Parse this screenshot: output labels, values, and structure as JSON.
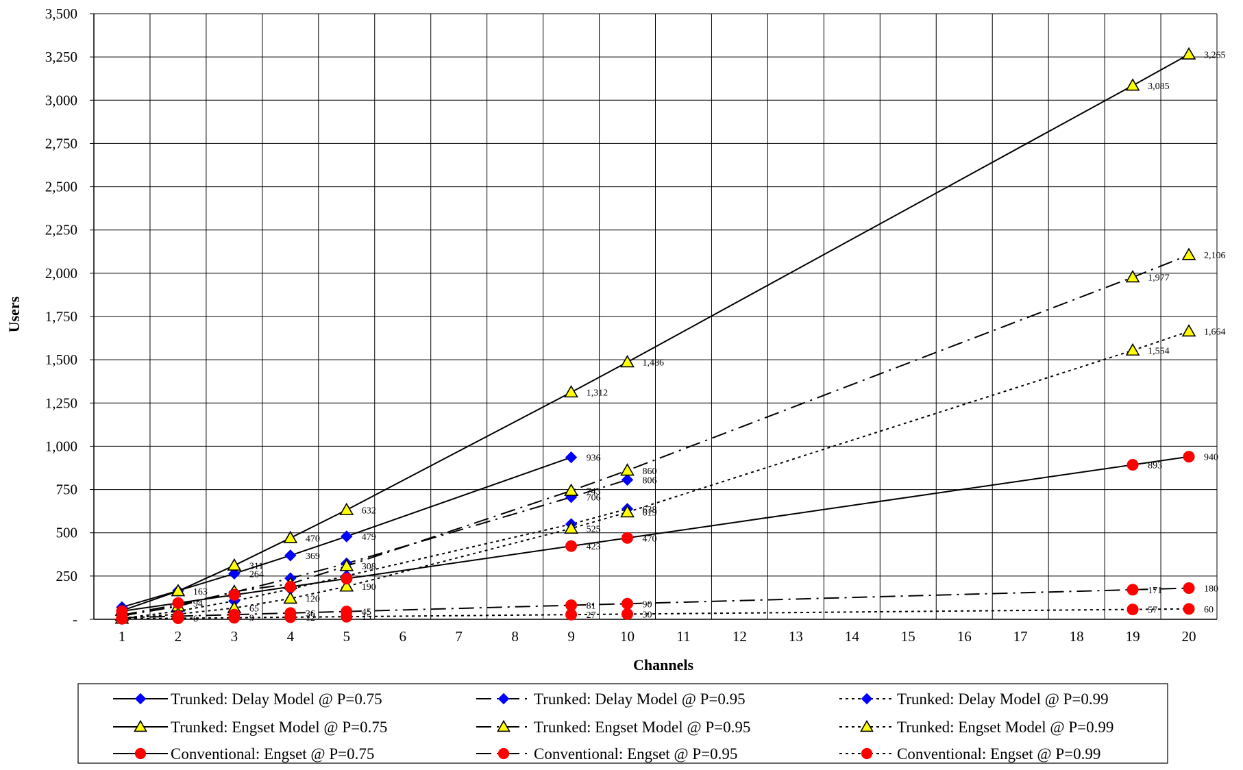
{
  "chart_data": {
    "type": "line",
    "title": "",
    "xlabel": "Channels",
    "ylabel": "Users",
    "x_categories": [
      "1",
      "2",
      "3",
      "4",
      "5",
      "6",
      "7",
      "8",
      "9",
      "10",
      "11",
      "12",
      "13",
      "14",
      "15",
      "16",
      "17",
      "18",
      "19",
      "20"
    ],
    "ylim": [
      0,
      3500
    ],
    "y_ticks": [
      {
        "value": 0,
        "label": "-"
      },
      {
        "value": 250,
        "label": "250"
      },
      {
        "value": 500,
        "label": "500"
      },
      {
        "value": 750,
        "label": "750"
      },
      {
        "value": 1000,
        "label": "1,000"
      },
      {
        "value": 1250,
        "label": "1,250"
      },
      {
        "value": 1500,
        "label": "1,500"
      },
      {
        "value": 1750,
        "label": "1,750"
      },
      {
        "value": 2000,
        "label": "2,000"
      },
      {
        "value": 2250,
        "label": "2,250"
      },
      {
        "value": 2500,
        "label": "2,500"
      },
      {
        "value": 2750,
        "label": "2,750"
      },
      {
        "value": 3000,
        "label": "3,000"
      },
      {
        "value": 3250,
        "label": "3,250"
      },
      {
        "value": 3500,
        "label": "3,500"
      }
    ],
    "grid": true,
    "legend_position": "bottom",
    "series": [
      {
        "name": "Trunked: Delay Model @ P=0.75",
        "marker": "diamond",
        "dash": "solid",
        "color": "#0000ff",
        "points": [
          [
            1,
            70
          ],
          [
            2,
            165
          ],
          [
            3,
            264
          ],
          [
            4,
            369
          ],
          [
            5,
            479
          ],
          [
            9,
            936
          ]
        ],
        "labels": [
          "",
          "",
          "264",
          "369",
          "479",
          "936"
        ]
      },
      {
        "name": "Trunked: Delay Model @ P=0.95",
        "marker": "diamond",
        "dash": "dashdot",
        "color": "#0000ff",
        "points": [
          [
            1,
            25
          ],
          [
            2,
            85
          ],
          [
            3,
            157
          ],
          [
            4,
            237
          ],
          [
            5,
            323
          ],
          [
            9,
            706
          ],
          [
            10,
            806
          ]
        ],
        "labels": [
          "",
          "",
          "",
          "",
          "",
          "706",
          "806"
        ]
      },
      {
        "name": "Trunked: Delay Model @ P=0.99",
        "marker": "diamond",
        "dash": "dotted",
        "color": "#0000ff",
        "points": [
          [
            1,
            5
          ],
          [
            2,
            47
          ],
          [
            3,
            106
          ],
          [
            4,
            175
          ],
          [
            5,
            251
          ],
          [
            9,
            550
          ],
          [
            10,
            638
          ]
        ],
        "labels": [
          "",
          "",
          "",
          "",
          "",
          "",
          "638"
        ]
      },
      {
        "name": "Trunked: Engset Model @ P=0.75",
        "marker": "triangle",
        "dash": "solid",
        "color": "#ffff00",
        "points": [
          [
            1,
            50
          ],
          [
            2,
            163
          ],
          [
            3,
            311
          ],
          [
            4,
            470
          ],
          [
            5,
            632
          ],
          [
            9,
            1312
          ],
          [
            10,
            1486
          ],
          [
            19,
            3085
          ],
          [
            20,
            3265
          ]
        ],
        "labels": [
          "",
          "163",
          "311",
          "470",
          "632",
          "1,312",
          "1,486",
          "3,085",
          "3,265"
        ]
      },
      {
        "name": "Trunked: Engset Model @ P=0.95",
        "marker": "triangle",
        "dash": "dashdot",
        "color": "#ffff00",
        "points": [
          [
            1,
            20
          ],
          [
            2,
            75
          ],
          [
            3,
            160
          ],
          [
            4,
            205
          ],
          [
            5,
            308
          ],
          [
            9,
            743
          ],
          [
            10,
            860
          ],
          [
            19,
            1977
          ],
          [
            20,
            2106
          ]
        ],
        "labels": [
          "",
          "",
          "",
          "",
          "308",
          "743",
          "860",
          "1,977",
          "2,106"
        ]
      },
      {
        "name": "Trunked: Engset Model @ P=0.99",
        "marker": "triangle",
        "dash": "dotted",
        "color": "#ffff00",
        "points": [
          [
            1,
            4
          ],
          [
            2,
            30
          ],
          [
            3,
            65
          ],
          [
            4,
            120
          ],
          [
            5,
            190
          ],
          [
            9,
            525
          ],
          [
            10,
            619
          ],
          [
            19,
            1554
          ],
          [
            20,
            1664
          ]
        ],
        "labels": [
          "",
          "",
          "65",
          "120",
          "190",
          "525",
          "619",
          "1,554",
          "1,664"
        ]
      },
      {
        "name": "Conventional: Engset @ P=0.75",
        "marker": "circle",
        "dash": "solid",
        "color": "#ff0000",
        "points": [
          [
            1,
            47
          ],
          [
            2,
            94
          ],
          [
            3,
            141
          ],
          [
            4,
            188
          ],
          [
            5,
            235
          ],
          [
            9,
            423
          ],
          [
            10,
            470
          ],
          [
            19,
            893
          ],
          [
            20,
            940
          ]
        ],
        "labels": [
          "",
          "94",
          "",
          "",
          "",
          "423",
          "470",
          "893",
          "940"
        ]
      },
      {
        "name": "Conventional: Engset @ P=0.95",
        "marker": "circle",
        "dash": "dashdot",
        "color": "#ff0000",
        "points": [
          [
            1,
            9
          ],
          [
            2,
            18
          ],
          [
            3,
            27
          ],
          [
            4,
            36
          ],
          [
            5,
            45
          ],
          [
            9,
            81
          ],
          [
            10,
            90
          ],
          [
            19,
            171
          ],
          [
            20,
            180
          ]
        ],
        "labels": [
          "",
          "",
          "",
          "36",
          "45",
          "81",
          "90",
          "171",
          "180"
        ]
      },
      {
        "name": "Conventional: Engset @ P=0.99",
        "marker": "circle",
        "dash": "dotted",
        "color": "#ff0000",
        "points": [
          [
            1,
            3
          ],
          [
            2,
            6
          ],
          [
            3,
            9
          ],
          [
            4,
            12
          ],
          [
            5,
            15
          ],
          [
            9,
            27
          ],
          [
            10,
            30
          ],
          [
            19,
            57
          ],
          [
            20,
            60
          ]
        ],
        "labels": [
          "",
          "6",
          "9",
          "12",
          "15",
          "27",
          "30",
          "57",
          "60"
        ]
      }
    ]
  }
}
